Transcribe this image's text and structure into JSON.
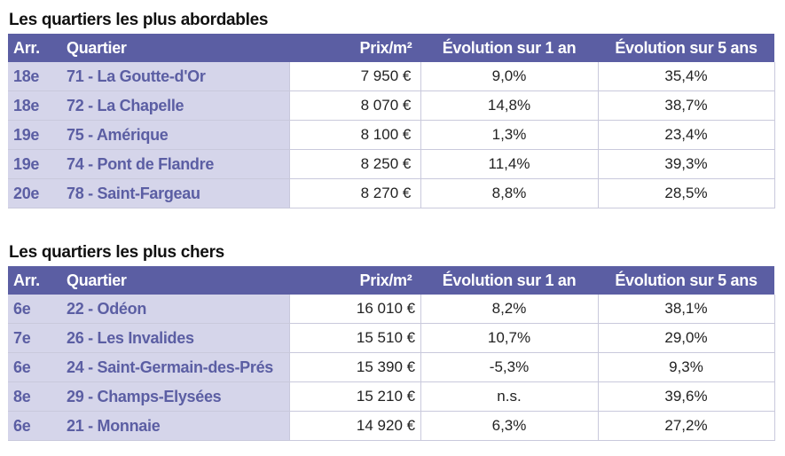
{
  "tables": [
    {
      "title": "Les quartiers les plus abordables",
      "headers": {
        "arr": "Arr.",
        "quartier": "Quartier",
        "prix": "Prix/m²",
        "evol1": "Évolution sur 1 an",
        "evol5": "Évolution sur 5 ans"
      },
      "rows": [
        {
          "arr": "18e",
          "quartier": "71 - La Goutte-d'Or",
          "prix": "7 950 €",
          "evol1": "9,0%",
          "evol5": "35,4%"
        },
        {
          "arr": "18e",
          "quartier": "72 - La Chapelle",
          "prix": "8 070 €",
          "evol1": "14,8%",
          "evol5": "38,7%"
        },
        {
          "arr": "19e",
          "quartier": "75 - Amérique",
          "prix": "8 100 €",
          "evol1": "1,3%",
          "evol5": "23,4%"
        },
        {
          "arr": "19e",
          "quartier": "74 - Pont de Flandre",
          "prix": "8 250 €",
          "evol1": "11,4%",
          "evol5": "39,3%"
        },
        {
          "arr": "20e",
          "quartier": "78 - Saint-Fargeau",
          "prix": "8 270 €",
          "evol1": "8,8%",
          "evol5": "28,5%"
        }
      ]
    },
    {
      "title": "Les quartiers les plus chers",
      "headers": {
        "arr": "Arr.",
        "quartier": "Quartier",
        "prix": "Prix/m²",
        "evol1": "Évolution sur 1 an",
        "evol5": "Évolution sur 5 ans"
      },
      "rows": [
        {
          "arr": "6e",
          "quartier": "22 - Odéon",
          "prix": "16 010 €",
          "evol1": "8,2%",
          "evol5": "38,1%"
        },
        {
          "arr": "7e",
          "quartier": "26 - Les Invalides",
          "prix": "15 510 €",
          "evol1": "10,7%",
          "evol5": "29,0%"
        },
        {
          "arr": "6e",
          "quartier": "24 - Saint-Germain-des-Prés",
          "prix": "15 390 €",
          "evol1": "-5,3%",
          "evol5": "9,3%"
        },
        {
          "arr": "8e",
          "quartier": "29 - Champs-Elysées",
          "prix": "15 210 €",
          "evol1": "n.s.",
          "evol5": "39,6%"
        },
        {
          "arr": "6e",
          "quartier": "21 - Monnaie",
          "prix": "14 920 €",
          "evol1": "6,3%",
          "evol5": "27,2%"
        }
      ]
    }
  ],
  "colors": {
    "header_bg": "#5b5ea3",
    "label_bg": "#d5d5ea",
    "label_text": "#5b5ea3",
    "grid": "#c9c9dc"
  }
}
